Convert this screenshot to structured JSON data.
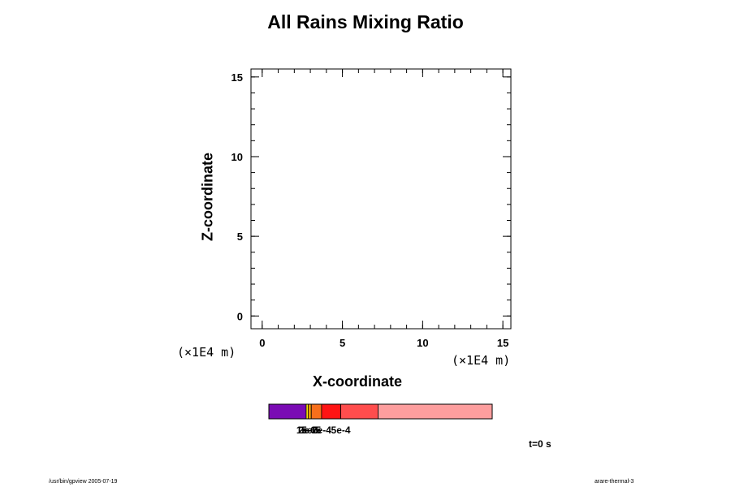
{
  "chart_data": {
    "type": "heatmap",
    "title": "All Rains Mixing Ratio",
    "xlabel": "X-coordinate",
    "ylabel": "Z-coordinate",
    "x_unit": "(×1E4 m)",
    "z_unit": "(×1E4 m)",
    "xlim": [
      -0.7,
      15.5
    ],
    "ylim": [
      -0.8,
      15.5
    ],
    "x_ticks": [
      0,
      5,
      10,
      15
    ],
    "y_ticks": [
      0,
      5,
      10,
      15
    ],
    "x_minor_step": 1,
    "y_minor_step": 1,
    "values": [],
    "time_label": "t=0 s",
    "colorbar": {
      "colors": [
        "#7a0bb4",
        "#f2e30a",
        "#ef9a0c",
        "#f76f1b",
        "#ff1414",
        "#ff4d4d",
        "#fd9e9e"
      ],
      "widths": [
        0.167,
        0.009,
        0.014,
        0.046,
        0.086,
        0.167,
        0.511
      ],
      "tick_labels": [
        "1e-6",
        "2e-5",
        "5e-5",
        "2e-4",
        "5e-4"
      ]
    }
  },
  "footer": {
    "left": "/usr/bin/gpview 2005-07-19",
    "right": "arare-thermal-3"
  }
}
